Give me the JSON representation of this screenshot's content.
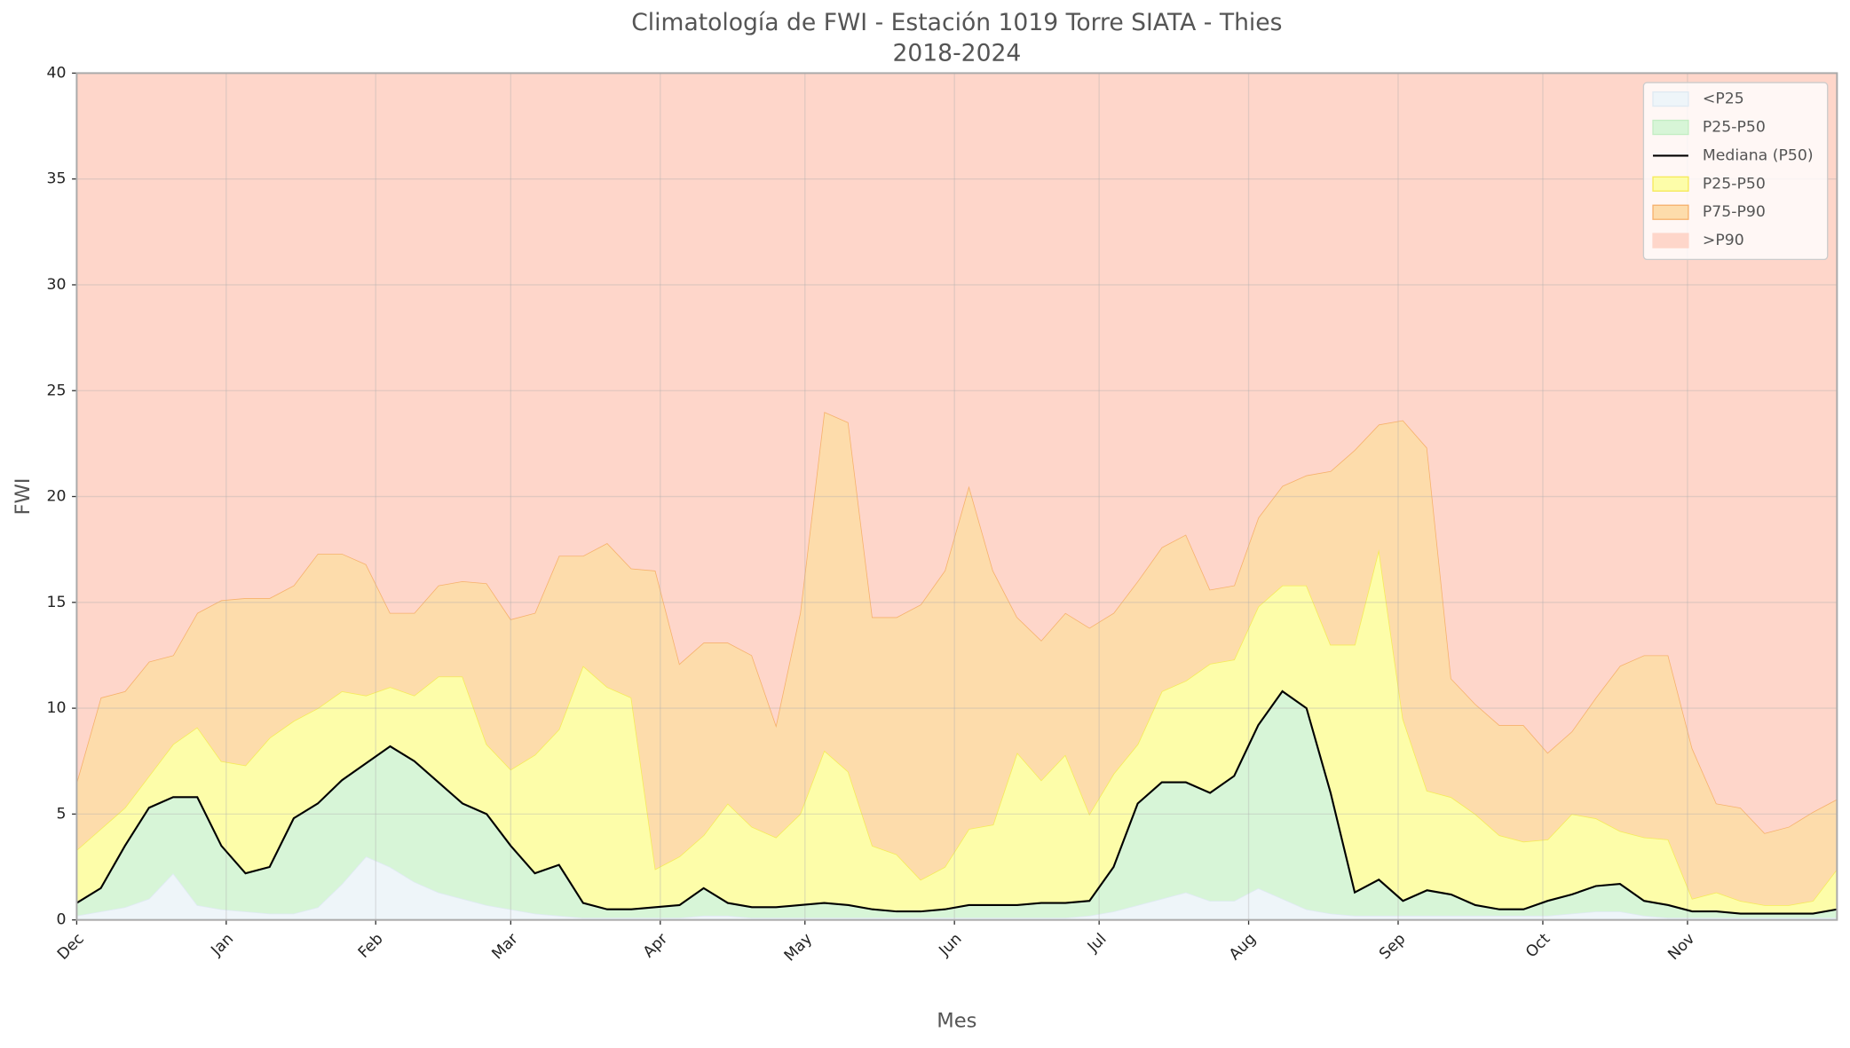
{
  "chart_data": {
    "type": "band",
    "title": "Climatología de FWI - Estación 1019 Torre SIATA - Thies",
    "subtitle": "2018-2024",
    "xlabel": "Mes",
    "ylabel": "FWI",
    "grid": true,
    "legend": "upper right",
    "xlim": [
      0,
      365
    ],
    "xticks": [
      {
        "value": 0,
        "label": "Dec"
      },
      {
        "value": 31,
        "label": "Jan"
      },
      {
        "value": 62,
        "label": "Feb"
      },
      {
        "value": 90,
        "label": "Mar"
      },
      {
        "value": 121,
        "label": "Apr"
      },
      {
        "value": 151,
        "label": "May"
      },
      {
        "value": 182,
        "label": "Jun"
      },
      {
        "value": 212,
        "label": "Jul"
      },
      {
        "value": 243,
        "label": "Aug"
      },
      {
        "value": 274,
        "label": "Sep"
      },
      {
        "value": 304,
        "label": "Oct"
      },
      {
        "value": 334,
        "label": "Nov"
      }
    ],
    "ylim": [
      0,
      40
    ],
    "yticks": [
      0,
      5,
      10,
      15,
      20,
      25,
      30,
      35,
      40
    ],
    "x": [
      0,
      5,
      10,
      15,
      20,
      25,
      30,
      35,
      40,
      45,
      50,
      55,
      60,
      65,
      70,
      75,
      80,
      85,
      90,
      95,
      100,
      105,
      110,
      115,
      120,
      125,
      130,
      135,
      140,
      145,
      150,
      155,
      160,
      165,
      170,
      175,
      180,
      185,
      190,
      195,
      200,
      205,
      210,
      215,
      220,
      225,
      230,
      235,
      240,
      245,
      250,
      255,
      260,
      265,
      270,
      275,
      280,
      285,
      290,
      295,
      300,
      305,
      310,
      315,
      320,
      325,
      330,
      335,
      340,
      345,
      350,
      355,
      360,
      365
    ],
    "series": [
      {
        "name": "<P25",
        "style": "band",
        "color": "#eef5f9",
        "edge": "#dfeaf2",
        "values": [
          0.2,
          0.4,
          0.6,
          1.0,
          2.2,
          0.7,
          0.5,
          0.4,
          0.3,
          0.3,
          0.6,
          1.7,
          3.0,
          2.5,
          1.8,
          1.3,
          1.0,
          0.7,
          0.5,
          0.3,
          0.2,
          0.1,
          0.1,
          0.1,
          0.1,
          0.1,
          0.2,
          0.2,
          0.1,
          0.1,
          0.1,
          0.1,
          0.1,
          0.1,
          0.1,
          0.1,
          0.1,
          0.1,
          0.1,
          0.1,
          0.1,
          0.1,
          0.2,
          0.4,
          0.7,
          1.0,
          1.3,
          0.9,
          0.9,
          1.5,
          1.0,
          0.5,
          0.3,
          0.2,
          0.2,
          0.2,
          0.2,
          0.2,
          0.2,
          0.2,
          0.2,
          0.2,
          0.3,
          0.4,
          0.4,
          0.2,
          0.1,
          0.1,
          0.1,
          0.1,
          0.1,
          0.1,
          0.1,
          0.1
        ]
      },
      {
        "name": "P25-P50",
        "style": "band",
        "color": "#d7f5d7",
        "edge": "#c3edc3",
        "values": [
          0.8,
          1.5,
          3.5,
          5.3,
          5.8,
          5.8,
          3.5,
          2.2,
          2.5,
          4.8,
          5.5,
          6.6,
          7.4,
          8.2,
          7.5,
          6.5,
          5.5,
          5.0,
          3.5,
          2.2,
          2.6,
          0.8,
          0.5,
          0.5,
          0.6,
          0.7,
          1.5,
          0.8,
          0.6,
          0.6,
          0.7,
          0.8,
          0.7,
          0.5,
          0.4,
          0.4,
          0.5,
          0.7,
          0.7,
          0.7,
          0.8,
          0.8,
          0.9,
          2.5,
          5.5,
          6.5,
          6.5,
          6.0,
          6.8,
          9.2,
          10.8,
          10.0,
          6.0,
          1.3,
          1.9,
          0.9,
          1.4,
          1.2,
          0.7,
          0.5,
          0.5,
          0.9,
          1.2,
          1.6,
          1.7,
          0.9,
          0.7,
          0.4,
          0.4,
          0.3,
          0.3,
          0.3,
          0.3,
          0.5
        ]
      },
      {
        "name": "Mediana (P50)",
        "style": "line",
        "color": "#000000",
        "values": [
          0.8,
          1.5,
          3.5,
          5.3,
          5.8,
          5.8,
          3.5,
          2.2,
          2.5,
          4.8,
          5.5,
          6.6,
          7.4,
          8.2,
          7.5,
          6.5,
          5.5,
          5.0,
          3.5,
          2.2,
          2.6,
          0.8,
          0.5,
          0.5,
          0.6,
          0.7,
          1.5,
          0.8,
          0.6,
          0.6,
          0.7,
          0.8,
          0.7,
          0.5,
          0.4,
          0.4,
          0.5,
          0.7,
          0.7,
          0.7,
          0.8,
          0.8,
          0.9,
          2.5,
          5.5,
          6.5,
          6.5,
          6.0,
          6.8,
          9.2,
          10.8,
          10.0,
          6.0,
          1.3,
          1.9,
          0.9,
          1.4,
          1.2,
          0.7,
          0.5,
          0.5,
          0.9,
          1.2,
          1.6,
          1.7,
          0.9,
          0.7,
          0.4,
          0.4,
          0.3,
          0.3,
          0.3,
          0.3,
          0.5
        ]
      },
      {
        "name": "P25-P50",
        "style": "band",
        "color": "#fdfda9",
        "edge": "#f6ea5a",
        "values": [
          3.3,
          4.3,
          5.3,
          6.8,
          8.3,
          9.1,
          7.5,
          7.3,
          8.6,
          9.4,
          10.0,
          10.8,
          10.6,
          11.0,
          10.6,
          11.5,
          11.5,
          8.3,
          7.1,
          7.8,
          9.0,
          12.0,
          11.0,
          10.5,
          2.4,
          3.0,
          4.0,
          5.5,
          4.4,
          3.9,
          5.0,
          8.0,
          7.0,
          3.5,
          3.1,
          1.9,
          2.5,
          4.3,
          4.5,
          7.9,
          6.6,
          7.8,
          5.0,
          6.9,
          8.3,
          10.8,
          11.3,
          12.1,
          12.3,
          14.8,
          15.8,
          15.8,
          13.0,
          13.0,
          17.5,
          9.5,
          6.1,
          5.8,
          5.0,
          4.0,
          3.7,
          3.8,
          5.0,
          4.8,
          4.2,
          3.9,
          3.8,
          1.0,
          1.3,
          0.9,
          0.7,
          0.7,
          0.9,
          2.4
        ]
      },
      {
        "name": "P75-P90",
        "style": "band",
        "color": "#fddcab",
        "edge": "#f6b16c",
        "values": [
          6.5,
          10.5,
          10.8,
          12.2,
          12.5,
          14.5,
          15.1,
          15.2,
          15.2,
          15.8,
          17.3,
          17.3,
          16.8,
          14.5,
          14.5,
          15.8,
          16.0,
          15.9,
          14.2,
          14.5,
          17.2,
          17.2,
          17.8,
          16.6,
          16.5,
          12.1,
          13.1,
          13.1,
          12.5,
          9.2,
          14.5,
          24.0,
          23.5,
          14.3,
          14.3,
          14.9,
          16.5,
          20.5,
          16.5,
          14.3,
          13.2,
          14.5,
          13.8,
          14.5,
          16.0,
          17.6,
          18.2,
          15.6,
          15.8,
          19.0,
          20.5,
          21.0,
          21.2,
          22.2,
          23.4,
          23.6,
          22.3,
          11.4,
          10.2,
          9.2,
          9.2,
          7.9,
          8.9,
          10.5,
          12.0,
          12.5,
          12.5,
          8.1,
          5.5,
          5.3,
          4.1,
          4.4,
          5.1,
          5.7
        ]
      },
      {
        "name": ">P90",
        "style": "band",
        "color": "#fed6ca"
      }
    ]
  }
}
